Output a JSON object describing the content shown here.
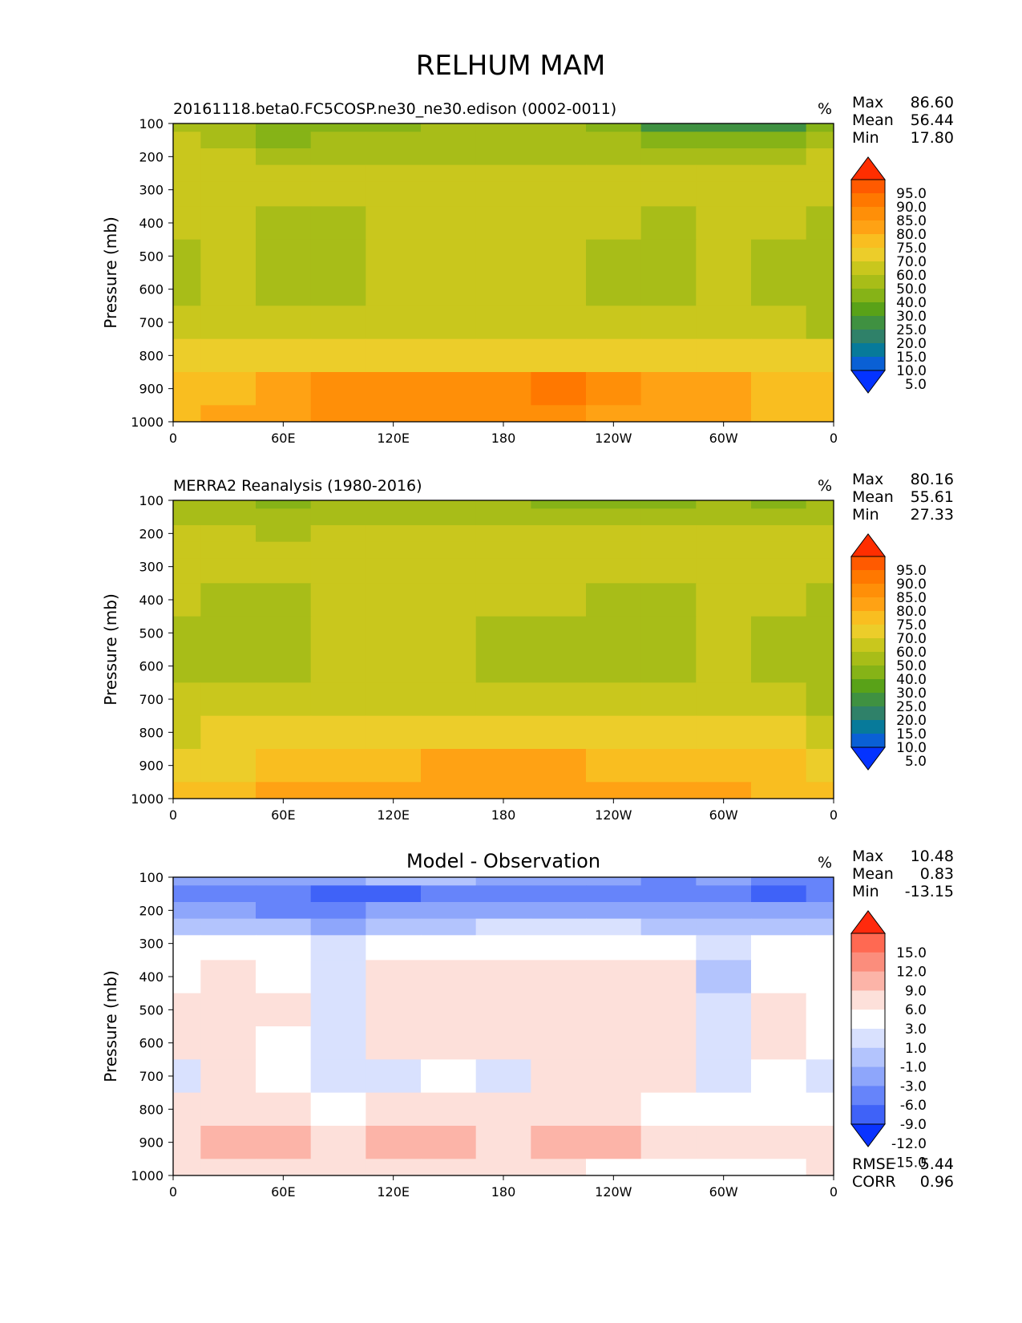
{
  "title": "RELHUM MAM",
  "panels": [
    {
      "title": "20161118.beta0.FC5COSP.ne30_ne30.edison (0002-0011)",
      "title_align": "left",
      "units": "%",
      "stats": [
        {
          "label": "Max",
          "value": "86.60"
        },
        {
          "label": "Mean",
          "value": "56.44"
        },
        {
          "label": "Min",
          "value": "17.80"
        }
      ],
      "ylabel": "Pressure (mb)",
      "colorbar": {
        "labels": [
          "95.0",
          "90.0",
          "85.0",
          "80.0",
          "75.0",
          "70.0",
          "60.0",
          "50.0",
          "40.0",
          "30.0",
          "25.0",
          "20.0",
          "15.0",
          "10.0",
          "5.0"
        ],
        "colors": [
          "#ff2e00",
          "#ff5a00",
          "#ff7800",
          "#ff8f08",
          "#ffa214",
          "#f9be20",
          "#eccd2a",
          "#c9c71d",
          "#a8bd18",
          "#86b317",
          "#59a218",
          "#3f9141",
          "#2f8169",
          "#077a9a",
          "#0a60d5",
          "#0433ff"
        ]
      }
    },
    {
      "title": "MERRA2 Reanalysis (1980-2016)",
      "title_align": "left",
      "units": "%",
      "stats": [
        {
          "label": "Max",
          "value": "80.16"
        },
        {
          "label": "Mean",
          "value": "55.61"
        },
        {
          "label": "Min",
          "value": "27.33"
        }
      ],
      "ylabel": "Pressure (mb)",
      "colorbar": {
        "labels": [
          "95.0",
          "90.0",
          "85.0",
          "80.0",
          "75.0",
          "70.0",
          "60.0",
          "50.0",
          "40.0",
          "30.0",
          "25.0",
          "20.0",
          "15.0",
          "10.0",
          "5.0"
        ],
        "colors": [
          "#ff2e00",
          "#ff5a00",
          "#ff7800",
          "#ff8f08",
          "#ffa214",
          "#f9be20",
          "#eccd2a",
          "#c9c71d",
          "#a8bd18",
          "#86b317",
          "#59a218",
          "#3f9141",
          "#2f8169",
          "#077a9a",
          "#0a60d5",
          "#0433ff"
        ]
      }
    },
    {
      "title": "Model - Observation",
      "title_align": "center",
      "units": "%",
      "stats": [
        {
          "label": "Max",
          "value": "10.48"
        },
        {
          "label": "Mean",
          "value": "0.83"
        },
        {
          "label": "Min",
          "value": "-13.15"
        }
      ],
      "ylabel": "Pressure (mb)",
      "colorbar": {
        "labels": [
          "15.0",
          "12.0",
          "9.0",
          "6.0",
          "3.0",
          "1.0",
          "-1.0",
          "-3.0",
          "-6.0",
          "-9.0",
          "-12.0",
          "-15.0"
        ],
        "colors": [
          "#ff2a0d",
          "#ff6952",
          "#fb8d7c",
          "#fcb4a8",
          "#fde0da",
          "#ffffff",
          "#d9e1fe",
          "#b3c4fd",
          "#8ea6fb",
          "#6684fa",
          "#3f62f8",
          "#0a33ff"
        ]
      },
      "rmse": {
        "label": "RMSE",
        "value": "5.44"
      },
      "corr": {
        "label": "CORR",
        "value": "0.96"
      }
    }
  ],
  "chart_data": [
    {
      "type": "heatmap",
      "title": "20161118.beta0.FC5COSP.ne30_ne30.edison (0002-0011)",
      "ylabel": "Pressure (mb)",
      "xticks": [
        "0",
        "60E",
        "120E",
        "180",
        "120W",
        "60W",
        "0"
      ],
      "yticks": [
        "100",
        "200",
        "300",
        "400",
        "500",
        "600",
        "700",
        "800",
        "900",
        "1000"
      ],
      "xlim": [
        0,
        360
      ],
      "ylim": [
        1000,
        100
      ],
      "y": [
        100,
        150,
        200,
        250,
        300,
        400,
        500,
        600,
        700,
        800,
        900,
        1000
      ],
      "x": [
        0,
        30,
        60,
        90,
        120,
        150,
        180,
        210,
        240,
        270,
        300,
        330,
        360
      ],
      "values": [
        [
          45,
          40,
          30,
          32,
          38,
          40,
          42,
          40,
          30,
          22,
          20,
          22,
          35
        ],
        [
          50,
          45,
          38,
          40,
          44,
          45,
          45,
          45,
          42,
          38,
          35,
          38,
          45
        ],
        [
          52,
          50,
          45,
          46,
          48,
          48,
          48,
          48,
          46,
          45,
          44,
          45,
          50
        ],
        [
          55,
          55,
          52,
          52,
          54,
          55,
          55,
          55,
          54,
          52,
          52,
          52,
          55
        ],
        [
          58,
          58,
          56,
          57,
          58,
          58,
          58,
          58,
          58,
          57,
          56,
          55,
          55
        ],
        [
          50,
          58,
          45,
          45,
          58,
          58,
          58,
          58,
          50,
          45,
          55,
          50,
          48
        ],
        [
          45,
          56,
          45,
          45,
          58,
          58,
          58,
          58,
          45,
          45,
          56,
          45,
          45
        ],
        [
          45,
          56,
          45,
          48,
          58,
          58,
          58,
          56,
          45,
          45,
          56,
          45,
          45
        ],
        [
          50,
          58,
          52,
          56,
          58,
          58,
          58,
          58,
          55,
          56,
          58,
          50,
          45
        ],
        [
          62,
          65,
          64,
          66,
          68,
          68,
          68,
          68,
          66,
          64,
          66,
          64,
          62
        ],
        [
          70,
          72,
          78,
          80,
          80,
          82,
          84,
          85,
          80,
          78,
          76,
          74,
          72
        ],
        [
          72,
          75,
          78,
          80,
          80,
          82,
          82,
          80,
          78,
          78,
          76,
          74,
          74
        ]
      ]
    },
    {
      "type": "heatmap",
      "title": "MERRA2 Reanalysis (1980-2016)",
      "ylabel": "Pressure (mb)",
      "xticks": [
        "0",
        "60E",
        "120E",
        "180",
        "120W",
        "60W",
        "0"
      ],
      "yticks": [
        "100",
        "200",
        "300",
        "400",
        "500",
        "600",
        "700",
        "800",
        "900",
        "1000"
      ],
      "xlim": [
        0,
        360
      ],
      "ylim": [
        1000,
        100
      ],
      "y": [
        100,
        150,
        200,
        250,
        300,
        400,
        500,
        600,
        700,
        800,
        900,
        1000
      ],
      "x": [
        0,
        30,
        60,
        90,
        120,
        150,
        180,
        210,
        240,
        270,
        300,
        330,
        360
      ],
      "values": [
        [
          40,
          40,
          38,
          40,
          42,
          40,
          40,
          38,
          35,
          38,
          40,
          38,
          40
        ],
        [
          45,
          45,
          44,
          46,
          46,
          46,
          46,
          45,
          44,
          45,
          45,
          45,
          45
        ],
        [
          52,
          50,
          48,
          52,
          54,
          54,
          54,
          54,
          52,
          52,
          52,
          52,
          52
        ],
        [
          56,
          56,
          55,
          56,
          57,
          57,
          57,
          57,
          57,
          56,
          56,
          56,
          56
        ],
        [
          58,
          58,
          58,
          58,
          58,
          58,
          58,
          58,
          58,
          58,
          58,
          58,
          58
        ],
        [
          50,
          45,
          45,
          56,
          58,
          58,
          58,
          52,
          48,
          48,
          56,
          50,
          45
        ],
        [
          45,
          45,
          45,
          56,
          58,
          58,
          48,
          45,
          45,
          45,
          58,
          45,
          45
        ],
        [
          45,
          45,
          45,
          56,
          58,
          58,
          48,
          45,
          45,
          45,
          58,
          45,
          45
        ],
        [
          52,
          55,
          55,
          58,
          58,
          58,
          56,
          52,
          52,
          56,
          58,
          52,
          48
        ],
        [
          58,
          60,
          62,
          62,
          62,
          62,
          62,
          62,
          62,
          62,
          62,
          60,
          58
        ],
        [
          66,
          68,
          70,
          72,
          72,
          76,
          76,
          76,
          72,
          72,
          74,
          72,
          68
        ],
        [
          72,
          74,
          76,
          76,
          76,
          78,
          78,
          78,
          76,
          76,
          76,
          74,
          72
        ]
      ]
    },
    {
      "type": "heatmap",
      "title": "Model - Observation",
      "ylabel": "Pressure (mb)",
      "xticks": [
        "0",
        "60E",
        "120E",
        "180",
        "120W",
        "60W",
        "0"
      ],
      "yticks": [
        "100",
        "200",
        "300",
        "400",
        "500",
        "600",
        "700",
        "800",
        "900",
        "1000"
      ],
      "xlim": [
        0,
        360
      ],
      "ylim": [
        1000,
        100
      ],
      "y": [
        100,
        150,
        200,
        250,
        300,
        400,
        500,
        600,
        700,
        800,
        900,
        1000
      ],
      "x": [
        0,
        30,
        60,
        90,
        120,
        150,
        180,
        210,
        240,
        270,
        300,
        330,
        360
      ],
      "values": [
        [
          -6,
          -4,
          -6,
          -4,
          -2,
          -3,
          -4,
          -5,
          -6,
          -7,
          -6,
          -9,
          -8
        ],
        [
          -8,
          -7,
          -9,
          -10,
          -10,
          -9,
          -8,
          -8,
          -8,
          -9,
          -9,
          -10,
          -9
        ],
        [
          -6,
          -5,
          -7,
          -7,
          -6,
          -6,
          -5,
          -5,
          -4,
          -5,
          -6,
          -6,
          -6
        ],
        [
          -3,
          -2,
          -3,
          -4,
          -3,
          -2,
          -1,
          -1,
          -1,
          -2,
          -3,
          -3,
          -2
        ],
        [
          2,
          2,
          1,
          -1,
          1,
          2,
          2,
          2,
          2,
          1,
          -1,
          2,
          2
        ],
        [
          2,
          3,
          2,
          0,
          3,
          5,
          4,
          5,
          5,
          4,
          -2,
          2,
          2
        ],
        [
          3,
          4,
          3,
          0,
          4,
          5,
          5,
          5,
          5,
          4,
          0,
          4,
          2
        ],
        [
          3,
          4,
          2,
          0,
          3,
          4,
          4,
          5,
          4,
          3,
          0,
          3,
          2
        ],
        [
          0,
          3,
          2,
          0,
          0,
          2,
          0,
          3,
          3,
          3,
          0,
          2,
          0
        ],
        [
          3,
          5,
          3,
          2,
          3,
          3,
          3,
          4,
          3,
          2,
          1,
          2,
          2
        ],
        [
          4,
          8,
          6,
          5,
          6,
          7,
          5,
          6,
          6,
          4,
          3,
          4,
          4
        ],
        [
          3,
          4,
          3,
          3,
          3,
          3,
          3,
          3,
          2,
          1,
          2,
          2,
          3
        ]
      ]
    }
  ]
}
